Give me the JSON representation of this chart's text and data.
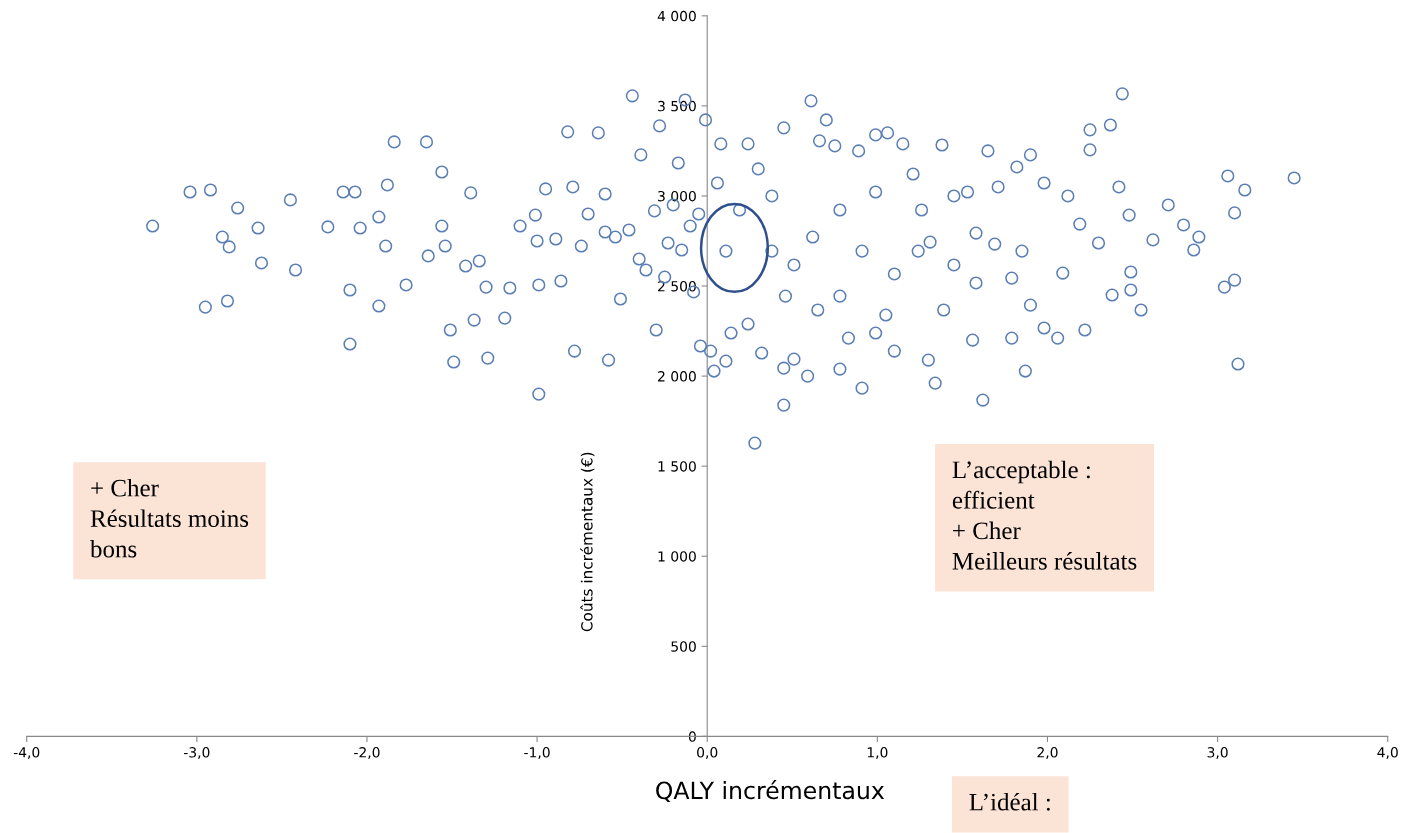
{
  "chart_data": {
    "type": "scatter",
    "xlabel": "QALY incrémentaux",
    "ylabel": "Coûts incrémentaux (€)",
    "xlim": [
      -4,
      4
    ],
    "ylim": [
      0,
      4000
    ],
    "xticks": [
      {
        "value": -4,
        "label": "-4,0"
      },
      {
        "value": -3,
        "label": "-3,0"
      },
      {
        "value": -2,
        "label": "-2,0"
      },
      {
        "value": -1,
        "label": "-1,0"
      },
      {
        "value": 0,
        "label": "0,0"
      },
      {
        "value": 1,
        "label": "1,0"
      },
      {
        "value": 2,
        "label": "2,0"
      },
      {
        "value": 3,
        "label": "3,0"
      },
      {
        "value": 4,
        "label": "4,0"
      }
    ],
    "yticks": [
      0,
      500,
      {
        "value": 1000,
        "label": "1 000"
      },
      {
        "value": 1500,
        "label": "1 500"
      },
      {
        "value": 2000,
        "label": "2 000"
      },
      {
        "value": 2500,
        "label": "2 500"
      },
      {
        "value": 3000,
        "label": "3 000"
      },
      {
        "value": 3500,
        "label": "3 500"
      },
      {
        "value": 4000,
        "label": "4 000"
      }
    ],
    "marker": "circle",
    "grid": false,
    "legend": false,
    "annotations": [
      "+ Cher\nRésultats moins\nbons",
      "L’acceptable :\nefficient\n+ Cher\nMeilleurs résultats",
      "L’idéal :"
    ],
    "series": [
      {
        "color": "#5b7fb5",
        "x": [
          -3.26,
          -3.04,
          -2.92,
          -2.76,
          -2.85,
          -2.81,
          -2.64,
          -2.62,
          -2.45,
          -2.95,
          -2.82,
          -2.42,
          -2.23,
          -2.14,
          -2.07,
          -2.04,
          -2.1,
          -2.1,
          -1.88,
          -1.84,
          -1.93,
          -1.93,
          -1.89,
          -1.77,
          -1.64,
          -1.65,
          -1.56,
          -1.56,
          -1.54,
          -1.51,
          -1.49,
          -1.42,
          -1.39,
          -1.37,
          -1.29,
          -1.3,
          -1.34,
          -1.19,
          -1.16,
          -1.1,
          -1.01,
          -0.99,
          -0.99,
          -0.95,
          -0.89,
          -0.86,
          -0.82,
          -0.79,
          -0.78,
          -0.74,
          -0.64,
          -0.6,
          -0.54,
          -0.58,
          -0.51,
          -0.46,
          -0.44,
          -0.39,
          -0.36,
          -0.31,
          -0.3,
          -0.28,
          -0.23,
          -0.17,
          -0.13,
          -0.1,
          -0.08,
          -0.04,
          -0.01,
          -0.2,
          -0.05,
          -0.15,
          -0.25,
          -0.4,
          -0.6,
          -0.7,
          -1.0,
          0.61,
          0.7,
          0.28,
          0.45,
          0.91,
          1.62,
          2.44,
          2.37,
          2.25,
          2.25,
          3.45,
          3.06,
          3.16,
          3.1,
          3.1,
          3.04,
          3.12,
          2.89,
          2.86,
          2.71,
          2.8,
          2.62,
          2.48,
          2.49,
          2.49,
          2.55,
          2.38,
          2.3,
          2.22,
          2.42,
          2.19,
          2.06,
          2.09,
          1.98,
          1.9,
          1.87,
          1.9,
          2.12,
          1.98,
          1.82,
          1.79,
          1.79,
          1.69,
          1.56,
          1.58,
          1.65,
          1.38,
          1.34,
          1.3,
          1.53,
          1.45,
          1.39,
          1.1,
          1.15,
          1.06,
          0.99,
          1.26,
          1.24,
          1.05,
          0.99,
          0.83,
          0.78,
          0.59,
          0.51,
          0.45,
          0.32,
          0.11,
          0.04,
          0.02,
          0.66,
          0.45,
          0.08,
          0.24,
          0.89,
          0.75,
          0.99,
          0.78,
          0.62,
          0.51,
          0.38,
          0.91,
          1.1,
          0.78,
          0.65,
          0.46,
          0.24,
          0.14,
          1.45,
          1.71,
          1.85,
          1.21,
          1.58,
          1.31,
          0.38,
          0.11,
          0.19,
          0.06,
          0.3
        ],
        "values": [
          2833,
          3022,
          3033,
          2933,
          2772,
          2717,
          2822,
          2628,
          2978,
          2383,
          2417,
          2589,
          2828,
          3022,
          3022,
          2822,
          2478,
          2178,
          3061,
          3300,
          2883,
          2389,
          2722,
          2506,
          2667,
          3300,
          3133,
          2833,
          2722,
          2256,
          2078,
          2611,
          3017,
          2311,
          2100,
          2494,
          2639,
          2322,
          2489,
          2833,
          2894,
          2506,
          1900,
          3039,
          2761,
          2528,
          3356,
          3050,
          2139,
          2722,
          3350,
          3011,
          2772,
          2089,
          2428,
          2811,
          3556,
          3228,
          2589,
          2917,
          2256,
          3389,
          2739,
          3183,
          3533,
          2833,
          2467,
          2167,
          3422,
          2950,
          2900,
          2700,
          2550,
          2650,
          2800,
          2900,
          2750,
          3528,
          3422,
          1628,
          1839,
          1933,
          1867,
          3567,
          3394,
          3367,
          3256,
          3100,
          3111,
          3033,
          2906,
          2533,
          2494,
          2067,
          2772,
          2700,
          2950,
          2839,
          2756,
          2894,
          2578,
          2478,
          2367,
          2450,
          2739,
          2256,
          3050,
          2844,
          2211,
          2572,
          2267,
          3228,
          2028,
          2394,
          3000,
          3072,
          3161,
          2544,
          2211,
          2733,
          2200,
          2517,
          3250,
          3283,
          1961,
          2089,
          3022,
          2617,
          2367,
          2139,
          3289,
          3350,
          3339,
          2922,
          2694,
          2339,
          2239,
          2211,
          2039,
          2000,
          2094,
          2044,
          2128,
          2083,
          2028,
          2139,
          3306,
          3378,
          3289,
          3289,
          3250,
          3278,
          3022,
          2922,
          2772,
          2617,
          3000,
          2694,
          2567,
          2444,
          2367,
          2444,
          2289,
          2239,
          3000,
          3050,
          2694,
          3122,
          2794,
          2744,
          2694,
          2694,
          2922,
          3072,
          3150
        ]
      }
    ]
  }
}
